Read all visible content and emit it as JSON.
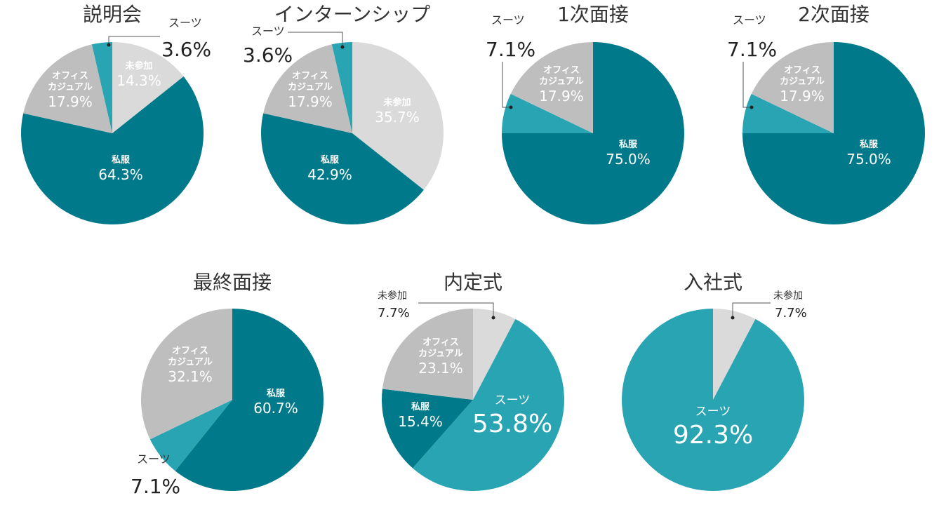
{
  "colors": {
    "私服": "#007A8A",
    "スーツ": "#28A4B2",
    "オフィスカジュアル": "#BEBEBE",
    "未参加": "#DADADA"
  },
  "chart_data": [
    {
      "type": "pie",
      "title": "説明会",
      "slices": [
        {
          "name": "未参加",
          "value": 14.3,
          "label": "14.3%"
        },
        {
          "name": "私服",
          "value": 64.3,
          "label": "64.3%"
        },
        {
          "name": "オフィスカジュアル",
          "value": 17.9,
          "label": "17.9%",
          "label_lines": [
            "オフィス",
            "カジュアル"
          ]
        },
        {
          "name": "スーツ",
          "value": 3.6,
          "label": "3.6%"
        }
      ]
    },
    {
      "type": "pie",
      "title": "インターンシップ",
      "slices": [
        {
          "name": "未参加",
          "value": 35.7,
          "label": "35.7%"
        },
        {
          "name": "私服",
          "value": 42.9,
          "label": "42.9%"
        },
        {
          "name": "オフィスカジュアル",
          "value": 17.9,
          "label": "17.9%",
          "label_lines": [
            "オフィス",
            "カジュアル"
          ]
        },
        {
          "name": "スーツ",
          "value": 3.6,
          "label": "3.6%"
        }
      ]
    },
    {
      "type": "pie",
      "title": "1次面接",
      "slices": [
        {
          "name": "私服",
          "value": 75.0,
          "label": "75.0%"
        },
        {
          "name": "スーツ",
          "value": 7.1,
          "label": "7.1%"
        },
        {
          "name": "オフィスカジュアル",
          "value": 17.9,
          "label": "17.9%",
          "label_lines": [
            "オフィス",
            "カジュアル"
          ]
        }
      ]
    },
    {
      "type": "pie",
      "title": "2次面接",
      "slices": [
        {
          "name": "私服",
          "value": 75.0,
          "label": "75.0%"
        },
        {
          "name": "スーツ",
          "value": 7.1,
          "label": "7.1%"
        },
        {
          "name": "オフィスカジュアル",
          "value": 17.9,
          "label": "17.9%",
          "label_lines": [
            "オフィス",
            "カジュアル"
          ]
        }
      ]
    },
    {
      "type": "pie",
      "title": "最終面接",
      "slices": [
        {
          "name": "私服",
          "value": 60.7,
          "label": "60.7%"
        },
        {
          "name": "スーツ",
          "value": 7.1,
          "label": "7.1%"
        },
        {
          "name": "オフィスカジュアル",
          "value": 32.1,
          "label": "32.1%",
          "label_lines": [
            "オフィス",
            "カジュアル"
          ]
        }
      ]
    },
    {
      "type": "pie",
      "title": "内定式",
      "slices": [
        {
          "name": "未参加",
          "value": 7.7,
          "label": "7.7%"
        },
        {
          "name": "スーツ",
          "value": 53.8,
          "label": "53.8%"
        },
        {
          "name": "私服",
          "value": 15.4,
          "label": "15.4%"
        },
        {
          "name": "オフィスカジュアル",
          "value": 23.1,
          "label": "23.1%",
          "label_lines": [
            "オフィス",
            "カジュアル"
          ]
        }
      ]
    },
    {
      "type": "pie",
      "title": "入社式",
      "slices": [
        {
          "name": "未参加",
          "value": 7.7,
          "label": "7.7%"
        },
        {
          "name": "スーツ",
          "value": 92.3,
          "label": "92.3%"
        }
      ]
    }
  ]
}
